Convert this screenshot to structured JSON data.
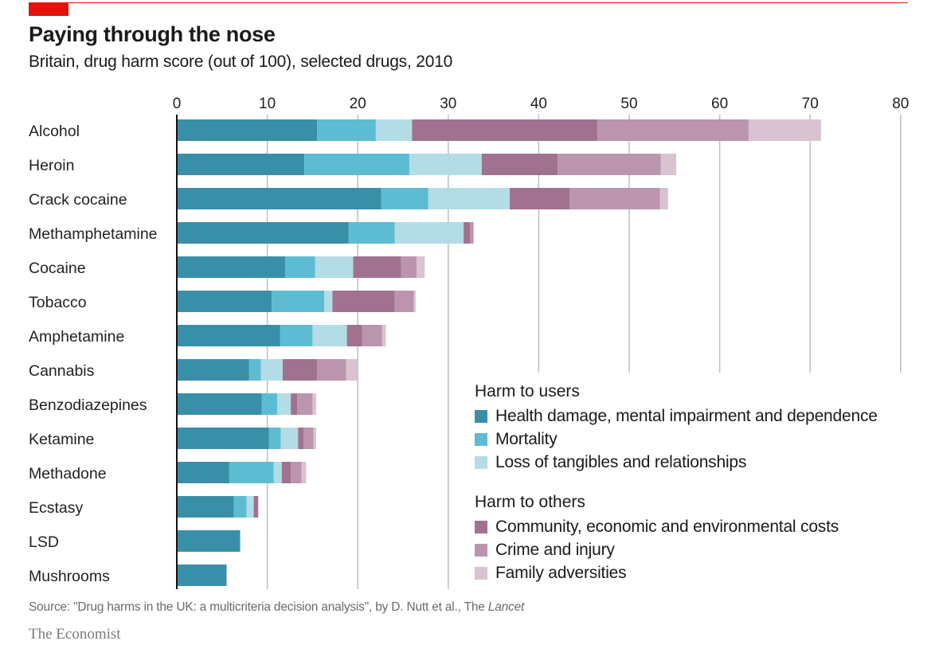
{
  "header": {
    "title": "Paying through the nose",
    "subtitle": "Britain, drug harm score (out of 100), selected drugs, 2010"
  },
  "footer": {
    "source_prefix": "Source: \"Drug harms in the UK: a multicriteria decision analysis\", by D. Nutt et al., The ",
    "source_journal": "Lancet",
    "brand": "The Economist"
  },
  "legend": {
    "group_users": "Harm to users",
    "group_others": "Harm to others"
  },
  "colors": {
    "brand_red": "#e3120b",
    "gridline": "#b9bfcc"
  },
  "chart_data": {
    "type": "bar",
    "orientation": "horizontal",
    "stacked": true,
    "xlim": [
      0,
      80
    ],
    "xticks": [
      0,
      10,
      20,
      30,
      40,
      50,
      60,
      70,
      80
    ],
    "grid": true,
    "categories": [
      "Alcohol",
      "Heroin",
      "Crack cocaine",
      "Methamphetamine",
      "Cocaine",
      "Tobacco",
      "Amphetamine",
      "Cannabis",
      "Benzodiazepines",
      "Ketamine",
      "Methadone",
      "Ecstasy",
      "LSD",
      "Mushrooms"
    ],
    "series": [
      {
        "name": "Health damage, mental impairment and dependence",
        "group": "Harm to users",
        "color": "#3a8fa8",
        "values": [
          15.5,
          14.1,
          22.6,
          19.0,
          12.0,
          10.5,
          11.4,
          8.0,
          9.4,
          10.2,
          5.8,
          6.3,
          7.0,
          5.5
        ]
      },
      {
        "name": "Mortality",
        "group": "Harm to users",
        "color": "#5dbcd2",
        "values": [
          6.5,
          11.6,
          5.2,
          5.1,
          3.3,
          5.8,
          3.6,
          1.3,
          1.7,
          1.3,
          4.9,
          1.4,
          0,
          0
        ]
      },
      {
        "name": "Loss of tangibles and relationships",
        "group": "Harm to users",
        "color": "#b3dce6",
        "values": [
          4.0,
          8.0,
          9.0,
          7.6,
          4.2,
          0.9,
          3.8,
          2.4,
          1.5,
          1.9,
          0.9,
          0.8,
          0,
          0
        ]
      },
      {
        "name": "Community, economic and environmental costs",
        "group": "Harm to others",
        "color": "#a0728f",
        "values": [
          20.5,
          8.4,
          6.6,
          0.7,
          5.3,
          6.9,
          1.7,
          3.8,
          0.7,
          0.6,
          1.0,
          0.5,
          0,
          0
        ]
      },
      {
        "name": "Crime and injury",
        "group": "Harm to others",
        "color": "#bb94ad",
        "values": [
          16.7,
          11.4,
          10.0,
          0.4,
          1.7,
          2.1,
          2.2,
          3.2,
          1.7,
          1.1,
          1.2,
          0,
          0,
          0
        ]
      },
      {
        "name": "Family adversities",
        "group": "Harm to others",
        "color": "#d9c3d1",
        "values": [
          8.0,
          1.7,
          0.9,
          0,
          0.9,
          0.2,
          0.4,
          1.3,
          0.4,
          0.3,
          0.5,
          0,
          0,
          0
        ]
      }
    ]
  }
}
